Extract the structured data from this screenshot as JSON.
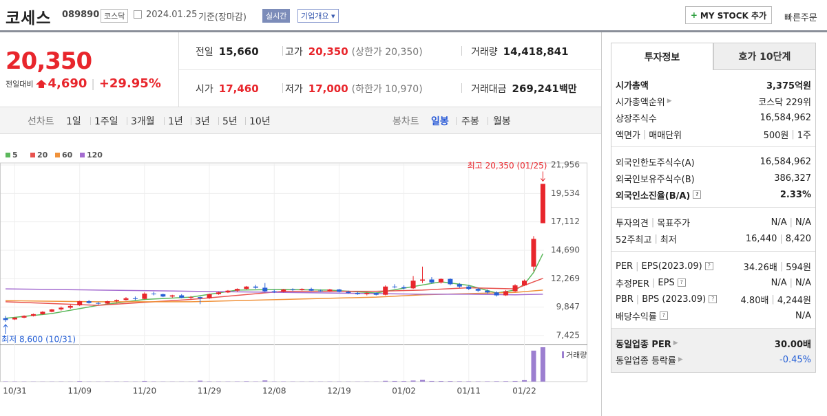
{
  "header": {
    "name": "코세스",
    "code": "089890",
    "market": "코스닥",
    "date": "2024.01.25",
    "basis": "기준(장마감)",
    "realtime": "실시간",
    "company": "기업개요",
    "mystock": "MY STOCK 추가",
    "quick_order": "빠른주문"
  },
  "price": {
    "current": "20,350",
    "change_label": "전일대비",
    "change": "4,690",
    "change_rate": "+29.95%"
  },
  "summary": [
    [
      {
        "label": "전일",
        "value": "15,660"
      },
      {
        "label": "고가",
        "value": "20,350",
        "note": "(상한가 20,350)",
        "color": "#e8262c"
      },
      {
        "label": "거래량",
        "value": "14,418,841"
      }
    ],
    [
      {
        "label": "시가",
        "value": "17,460",
        "color": "#e8262c"
      },
      {
        "label": "저가",
        "value": "17,000",
        "note": "(하한가 10,970)",
        "color": "#e8262c"
      },
      {
        "label": "거래대금",
        "value": "269,241",
        "unit": "백만"
      }
    ]
  ],
  "toolbar": {
    "line_chart": "선차트",
    "periods": [
      "1일",
      "1주일",
      "3개월",
      "1년",
      "3년",
      "5년",
      "10년"
    ],
    "candle_chart": "봉차트",
    "candle_periods": [
      "일봉",
      "주봉",
      "월봉"
    ],
    "selected": "일봉"
  },
  "chart_data": {
    "type": "candlestick",
    "up_color": "#e8262c",
    "down_color": "#2660d6",
    "grid": true,
    "xlim": [
      -0.6,
      62.8
    ],
    "xticks": [
      {
        "value": 1,
        "label": "10/31"
      },
      {
        "value": 8,
        "label": "11/09"
      },
      {
        "value": 15,
        "label": "11/20"
      },
      {
        "value": 22,
        "label": "11/29"
      },
      {
        "value": 29,
        "label": "12/08"
      },
      {
        "value": 36,
        "label": "12/19"
      },
      {
        "value": 43,
        "label": "01/02"
      },
      {
        "value": 50,
        "label": "01/11"
      },
      {
        "value": 56,
        "label": "01/22"
      }
    ],
    "ylim": [
      6722,
      22132
    ],
    "yticks": [
      {
        "value": 7425,
        "label": "7,425"
      },
      {
        "value": 9847,
        "label": "9,847"
      },
      {
        "value": 12269,
        "label": "12,269"
      },
      {
        "value": 14690,
        "label": "14,690"
      },
      {
        "value": 17112,
        "label": "17,112"
      },
      {
        "value": 19534,
        "label": "19,534"
      },
      {
        "value": 21956,
        "label": "21,956"
      }
    ],
    "ohlc": [
      [
        8900,
        9100,
        8600,
        8750
      ],
      [
        8800,
        9000,
        8750,
        8950
      ],
      [
        8950,
        9150,
        8900,
        9100
      ],
      [
        9100,
        9300,
        9050,
        9250
      ],
      [
        9250,
        9500,
        9200,
        9450
      ],
      [
        9450,
        9700,
        9400,
        9650
      ],
      [
        9650,
        9900,
        9550,
        9800
      ],
      [
        9800,
        10050,
        9700,
        9950
      ],
      [
        10000,
        10400,
        9950,
        10350
      ],
      [
        10350,
        10450,
        10150,
        10200
      ],
      [
        10200,
        10300,
        10050,
        10150
      ],
      [
        10150,
        10400,
        10100,
        10350
      ],
      [
        10350,
        10500,
        10250,
        10450
      ],
      [
        10450,
        10700,
        10400,
        10600
      ],
      [
        10600,
        10750,
        10450,
        10550
      ],
      [
        10550,
        11100,
        10500,
        11000
      ],
      [
        11000,
        11150,
        10850,
        10950
      ],
      [
        10950,
        11000,
        10700,
        10750
      ],
      [
        10750,
        10900,
        10650,
        10850
      ],
      [
        10850,
        10950,
        10600,
        10650
      ],
      [
        10650,
        10800,
        10500,
        10700
      ],
      [
        10700,
        10750,
        10100,
        10600
      ],
      [
        10600,
        11000,
        10550,
        10950
      ],
      [
        10950,
        11150,
        10900,
        11100
      ],
      [
        11100,
        11300,
        11050,
        11250
      ],
      [
        11250,
        11450,
        11150,
        11400
      ],
      [
        11400,
        11650,
        11350,
        11600
      ],
      [
        11600,
        11750,
        11400,
        11500
      ],
      [
        11500,
        11900,
        11100,
        11200
      ],
      [
        11200,
        11350,
        11050,
        11150
      ],
      [
        11150,
        11400,
        11100,
        11350
      ],
      [
        11350,
        11450,
        11200,
        11300
      ],
      [
        11300,
        11450,
        11250,
        11400
      ],
      [
        11400,
        11500,
        11200,
        11250
      ],
      [
        11250,
        11350,
        11150,
        11200
      ],
      [
        11200,
        11400,
        11150,
        11350
      ],
      [
        11350,
        11400,
        11100,
        11150
      ],
      [
        11150,
        11250,
        11000,
        11050
      ],
      [
        11050,
        11150,
        10900,
        10950
      ],
      [
        10950,
        11100,
        10850,
        11050
      ],
      [
        11050,
        11100,
        10850,
        10900
      ],
      [
        10900,
        11700,
        10850,
        11600
      ],
      [
        11600,
        11800,
        11450,
        11550
      ],
      [
        11550,
        11700,
        11350,
        11450
      ],
      [
        11450,
        12500,
        11400,
        12100
      ],
      [
        12100,
        13300,
        11900,
        12200
      ],
      [
        12200,
        12400,
        11850,
        11950
      ],
      [
        11950,
        12300,
        11850,
        12250
      ],
      [
        12250,
        12300,
        11700,
        11800
      ],
      [
        11800,
        11900,
        11500,
        11600
      ],
      [
        11600,
        11700,
        11300,
        11400
      ],
      [
        11400,
        11500,
        11150,
        11250
      ],
      [
        11250,
        11350,
        11000,
        11100
      ],
      [
        11100,
        11200,
        10750,
        10850
      ],
      [
        10850,
        11300,
        10800,
        11200
      ],
      [
        11200,
        11800,
        11150,
        11700
      ],
      [
        11700,
        12200,
        11650,
        12100
      ],
      [
        13300,
        15900,
        12900,
        15660
      ],
      [
        17000,
        20350,
        17000,
        20350
      ]
    ],
    "volume_label": "거래량",
    "volume_color": "#9c7fd0",
    "volume_ylim": [
      0,
      15000000
    ],
    "volumes": [
      150000,
      120000,
      100000,
      90000,
      80000,
      90000,
      100000,
      80000,
      250000,
      90000,
      80000,
      100000,
      90000,
      120000,
      90000,
      300000,
      120000,
      90000,
      80000,
      90000,
      80000,
      400000,
      150000,
      120000,
      110000,
      130000,
      200000,
      120000,
      500000,
      110000,
      130000,
      100000,
      90000,
      100000,
      90000,
      110000,
      100000,
      90000,
      80000,
      90000,
      80000,
      350000,
      300000,
      250000,
      450000,
      700000,
      300000,
      280000,
      260000,
      200000,
      180000,
      150000,
      160000,
      200000,
      220000,
      300000,
      600000,
      13000000,
      14418841
    ],
    "series": [
      {
        "name": "5",
        "color": "#5cb85c",
        "x": [
          0,
          5,
          10,
          15,
          20,
          25,
          30,
          35,
          40,
          44,
          47,
          50,
          53,
          55,
          56,
          57,
          58
        ],
        "values": [
          8900,
          9300,
          10000,
          10500,
          10700,
          11300,
          11350,
          11300,
          11050,
          11600,
          12000,
          11700,
          11050,
          11300,
          11800,
          12800,
          14400
        ]
      },
      {
        "name": "20",
        "color": "#e8534f",
        "x": [
          0,
          10,
          20,
          30,
          40,
          45,
          50,
          55,
          58
        ],
        "values": [
          10300,
          10000,
          10500,
          11200,
          11200,
          11300,
          11500,
          11400,
          12300
        ]
      },
      {
        "name": "60",
        "color": "#f0923a",
        "x": [
          0,
          10,
          20,
          30,
          40,
          45,
          50,
          55,
          58
        ],
        "values": [
          10400,
          10300,
          10300,
          10500,
          10700,
          10900,
          11000,
          11100,
          11300
        ]
      },
      {
        "name": "120",
        "color": "#a46cd0",
        "x": [
          0,
          10,
          20,
          30,
          40,
          45,
          50,
          55,
          58
        ],
        "values": [
          11400,
          11300,
          11200,
          11100,
          11000,
          10950,
          10950,
          10900,
          10950
        ]
      }
    ],
    "annotations": [
      {
        "text": "최고 20,350 (01/25)",
        "x": 58,
        "y": 20350,
        "position": "above",
        "color": "#e8262c"
      },
      {
        "text": "최저 8,600 (10/31)",
        "x": 0,
        "y": 8600,
        "position": "below",
        "color": "#2660d6"
      }
    ]
  },
  "info": {
    "tabs": [
      "투자정보",
      "호가 10단계"
    ],
    "groups": [
      [
        {
          "label": [
            "시가총액"
          ],
          "value": [
            "3,375억원"
          ],
          "bold": true
        },
        {
          "label": [
            "시가총액순위"
          ],
          "value": [
            "코스닥 229위"
          ],
          "link": true
        },
        {
          "label": [
            "상장주식수"
          ],
          "value": [
            "16,584,962"
          ]
        },
        {
          "label": [
            "액면가",
            "매매단위"
          ],
          "value": [
            "500원",
            "1주"
          ]
        }
      ],
      [
        {
          "label": [
            "외국인한도주식수(A)"
          ],
          "value": [
            "16,584,962"
          ]
        },
        {
          "label": [
            "외국인보유주식수(B)"
          ],
          "value": [
            "386,327"
          ]
        },
        {
          "label": [
            "외국인소진율(B/A)"
          ],
          "value": [
            "2.33%"
          ],
          "bold": true,
          "help": true
        }
      ],
      [
        {
          "label": [
            "투자의견",
            "목표주가"
          ],
          "value": [
            "N/A",
            "N/A"
          ]
        },
        {
          "label": [
            "52주최고",
            "최저"
          ],
          "value": [
            "16,440",
            "8,420"
          ]
        }
      ],
      [
        {
          "label": [
            "PER",
            "EPS(2023.09)"
          ],
          "value": [
            "34.26배",
            "594원"
          ],
          "help": true
        },
        {
          "label": [
            "추정PER",
            "EPS"
          ],
          "value": [
            "N/A",
            "N/A"
          ],
          "help": true
        },
        {
          "label": [
            "PBR",
            "BPS (2023.09)"
          ],
          "value": [
            "4.80배",
            "4,244원"
          ],
          "help": true
        },
        {
          "label": [
            "배당수익률"
          ],
          "value": [
            "N/A"
          ],
          "help": true
        }
      ],
      [
        {
          "label": [
            "동일업종 PER"
          ],
          "value": [
            "30.00배"
          ],
          "bold": true,
          "link": true
        },
        {
          "label": [
            "동일업종 등락률"
          ],
          "value": [
            "-0.45%"
          ],
          "link": true,
          "color": "#2660d6"
        }
      ]
    ]
  }
}
